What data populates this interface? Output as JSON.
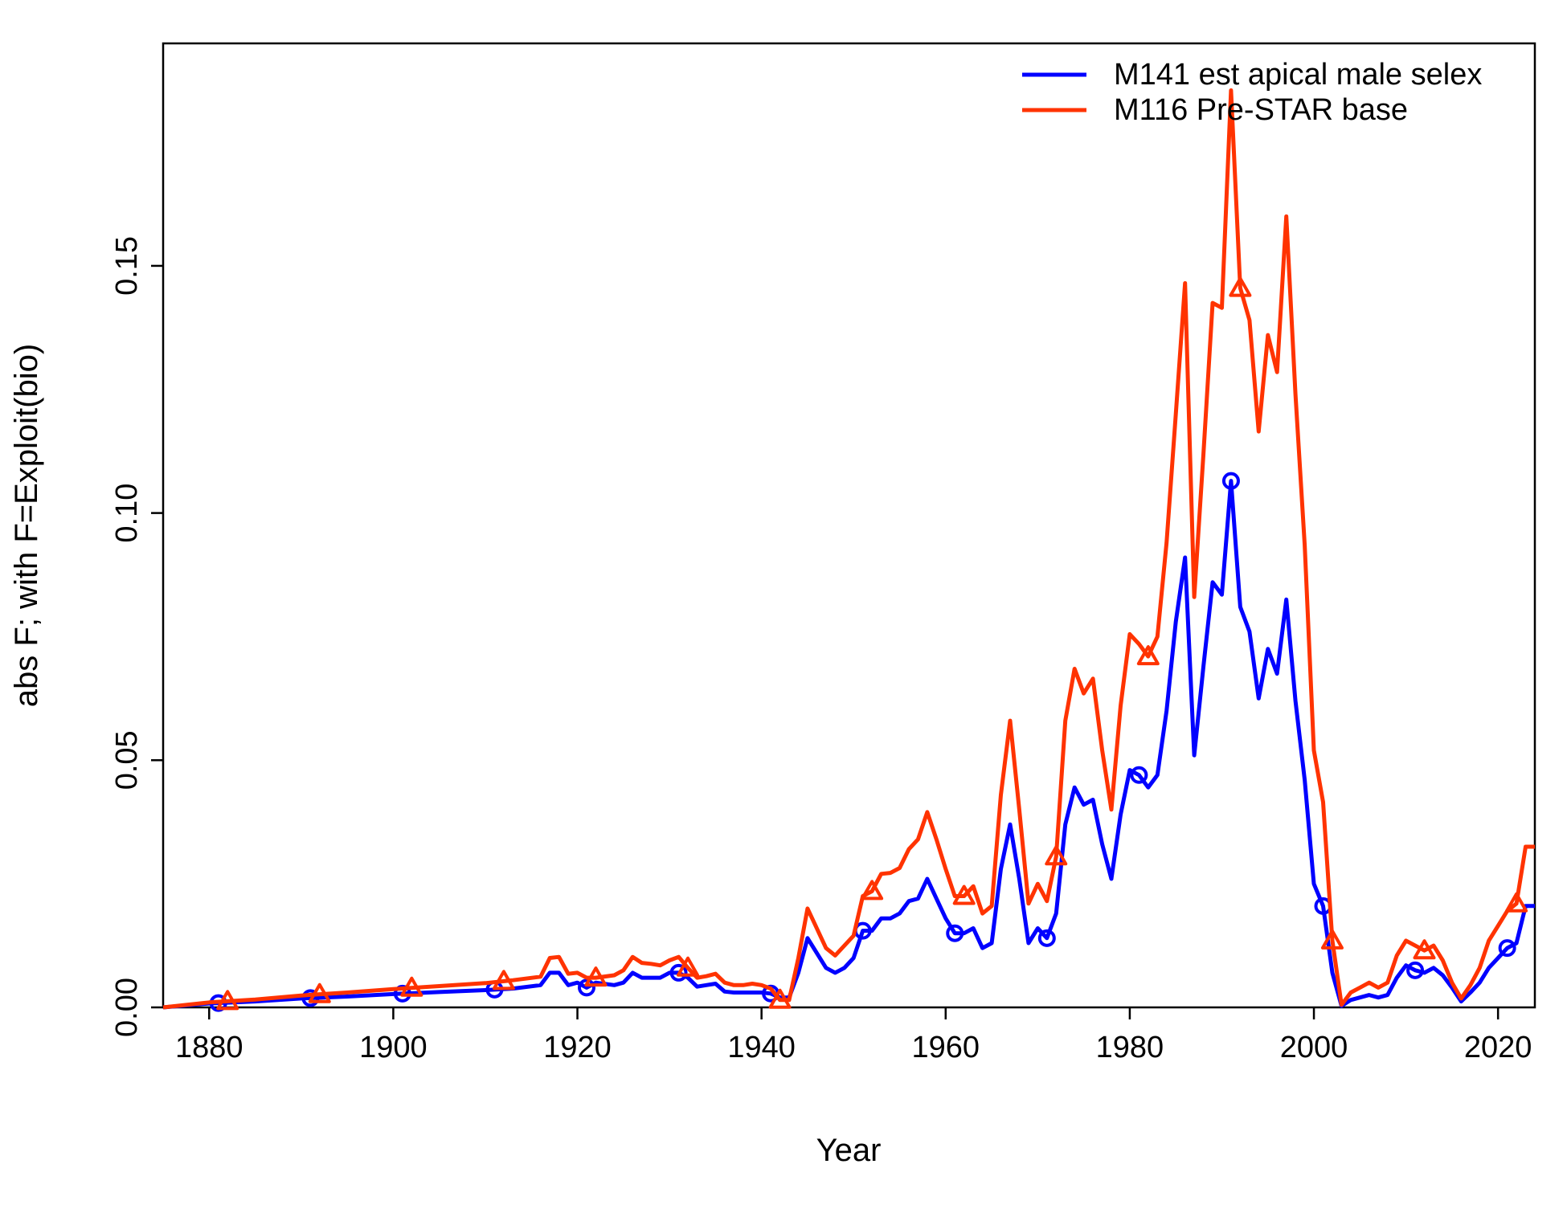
{
  "chart_data": {
    "type": "line",
    "title": "",
    "xlabel": "Year",
    "ylabel": "abs F; with F=Exploit(bio)",
    "xlim": [
      1875,
      2024
    ],
    "ylim": [
      0,
      0.195
    ],
    "x_ticks": [
      "1880",
      "1900",
      "1920",
      "1940",
      "1960",
      "1980",
      "2000",
      "2020"
    ],
    "y_ticks": [
      "0.00",
      "0.05",
      "0.10",
      "0.15"
    ],
    "grid": false,
    "legend_position": "top-right",
    "series": [
      {
        "name": "M141 est apical male selex",
        "color": "#0000ff",
        "marker": "circle",
        "marker_x": [
          1881,
          1891,
          1901,
          1911,
          1921,
          1931,
          1941,
          1951,
          1961,
          1971,
          1981,
          1991,
          2001,
          2011,
          2021
        ],
        "points": [
          [
            1875,
            0.0
          ],
          [
            1880,
            0.0008
          ],
          [
            1885,
            0.0012
          ],
          [
            1890,
            0.0018
          ],
          [
            1895,
            0.0022
          ],
          [
            1900,
            0.0027
          ],
          [
            1905,
            0.0031
          ],
          [
            1910,
            0.0035
          ],
          [
            1913,
            0.0038
          ],
          [
            1916,
            0.0045
          ],
          [
            1917,
            0.007
          ],
          [
            1918,
            0.007
          ],
          [
            1919,
            0.0045
          ],
          [
            1920,
            0.005
          ],
          [
            1921,
            0.004
          ],
          [
            1922,
            0.005
          ],
          [
            1924,
            0.0045
          ],
          [
            1925,
            0.005
          ],
          [
            1926,
            0.007
          ],
          [
            1927,
            0.006
          ],
          [
            1928,
            0.006
          ],
          [
            1929,
            0.006
          ],
          [
            1930,
            0.007
          ],
          [
            1931,
            0.007
          ],
          [
            1932,
            0.006
          ],
          [
            1933,
            0.0042
          ],
          [
            1934,
            0.0045
          ],
          [
            1935,
            0.0048
          ],
          [
            1936,
            0.0032
          ],
          [
            1937,
            0.003
          ],
          [
            1938,
            0.003
          ],
          [
            1939,
            0.003
          ],
          [
            1940,
            0.003
          ],
          [
            1941,
            0.0028
          ],
          [
            1942,
            0.002
          ],
          [
            1943,
            0.002
          ],
          [
            1944,
            0.007
          ],
          [
            1945,
            0.014
          ],
          [
            1946,
            0.011
          ],
          [
            1947,
            0.008
          ],
          [
            1948,
            0.007
          ],
          [
            1949,
            0.008
          ],
          [
            1950,
            0.01
          ],
          [
            1951,
            0.0155
          ],
          [
            1952,
            0.0155
          ],
          [
            1953,
            0.018
          ],
          [
            1954,
            0.018
          ],
          [
            1955,
            0.019
          ],
          [
            1956,
            0.0215
          ],
          [
            1957,
            0.022
          ],
          [
            1958,
            0.026
          ],
          [
            1959,
            0.022
          ],
          [
            1960,
            0.018
          ],
          [
            1961,
            0.015
          ],
          [
            1962,
            0.015
          ],
          [
            1963,
            0.016
          ],
          [
            1964,
            0.012
          ],
          [
            1965,
            0.013
          ],
          [
            1966,
            0.028
          ],
          [
            1967,
            0.037
          ],
          [
            1968,
            0.026
          ],
          [
            1969,
            0.013
          ],
          [
            1970,
            0.016
          ],
          [
            1971,
            0.014
          ],
          [
            1972,
            0.019
          ],
          [
            1973,
            0.037
          ],
          [
            1974,
            0.0445
          ],
          [
            1975,
            0.041
          ],
          [
            1976,
            0.042
          ],
          [
            1977,
            0.033
          ],
          [
            1978,
            0.026
          ],
          [
            1979,
            0.039
          ],
          [
            1980,
            0.048
          ],
          [
            1981,
            0.047
          ],
          [
            1982,
            0.0445
          ],
          [
            1983,
            0.047
          ],
          [
            1984,
            0.06
          ],
          [
            1985,
            0.078
          ],
          [
            1986,
            0.091
          ],
          [
            1987,
            0.051
          ],
          [
            1988,
            0.069
          ],
          [
            1989,
            0.086
          ],
          [
            1990,
            0.0835
          ],
          [
            1991,
            0.1065
          ],
          [
            1992,
            0.081
          ],
          [
            1993,
            0.076
          ],
          [
            1994,
            0.0625
          ],
          [
            1995,
            0.0725
          ],
          [
            1996,
            0.0675
          ],
          [
            1997,
            0.0825
          ],
          [
            1998,
            0.062
          ],
          [
            1999,
            0.046
          ],
          [
            2000,
            0.025
          ],
          [
            2001,
            0.0205
          ],
          [
            2002,
            0.007
          ],
          [
            2003,
            0.0003
          ],
          [
            2004,
            0.0015
          ],
          [
            2005,
            0.002
          ],
          [
            2006,
            0.0025
          ],
          [
            2007,
            0.002
          ],
          [
            2008,
            0.0025
          ],
          [
            2009,
            0.006
          ],
          [
            2010,
            0.0085
          ],
          [
            2011,
            0.0075
          ],
          [
            2012,
            0.007
          ],
          [
            2013,
            0.008
          ],
          [
            2014,
            0.0065
          ],
          [
            2015,
            0.004
          ],
          [
            2016,
            0.0012
          ],
          [
            2017,
            0.003
          ],
          [
            2018,
            0.005
          ],
          [
            2019,
            0.008
          ],
          [
            2020,
            0.01
          ],
          [
            2021,
            0.012
          ],
          [
            2022,
            0.013
          ],
          [
            2023,
            0.0205
          ],
          [
            2024,
            0.0205
          ]
        ]
      },
      {
        "name": "M116 Pre-STAR base",
        "color": "#ff3300",
        "marker": "triangle",
        "marker_x": [
          1882,
          1892,
          1902,
          1912,
          1922,
          1932,
          1942,
          1952,
          1962,
          1972,
          1982,
          1992,
          2002,
          2012,
          2022
        ],
        "points": [
          [
            1875,
            0.0
          ],
          [
            1880,
            0.001
          ],
          [
            1885,
            0.0016
          ],
          [
            1890,
            0.0024
          ],
          [
            1895,
            0.003
          ],
          [
            1900,
            0.0037
          ],
          [
            1905,
            0.0043
          ],
          [
            1910,
            0.0049
          ],
          [
            1913,
            0.0055
          ],
          [
            1916,
            0.0062
          ],
          [
            1917,
            0.01
          ],
          [
            1918,
            0.0102
          ],
          [
            1919,
            0.0068
          ],
          [
            1920,
            0.007
          ],
          [
            1921,
            0.006
          ],
          [
            1922,
            0.006
          ],
          [
            1924,
            0.0065
          ],
          [
            1925,
            0.0075
          ],
          [
            1926,
            0.0102
          ],
          [
            1927,
            0.009
          ],
          [
            1928,
            0.0088
          ],
          [
            1929,
            0.0085
          ],
          [
            1930,
            0.0095
          ],
          [
            1931,
            0.0102
          ],
          [
            1932,
            0.008
          ],
          [
            1933,
            0.006
          ],
          [
            1934,
            0.0063
          ],
          [
            1935,
            0.0068
          ],
          [
            1936,
            0.005
          ],
          [
            1937,
            0.0045
          ],
          [
            1938,
            0.0045
          ],
          [
            1939,
            0.0048
          ],
          [
            1940,
            0.0045
          ],
          [
            1941,
            0.0038
          ],
          [
            1942,
            0.0015
          ],
          [
            1943,
            0.0015
          ],
          [
            1944,
            0.01
          ],
          [
            1945,
            0.02
          ],
          [
            1946,
            0.016
          ],
          [
            1947,
            0.012
          ],
          [
            1948,
            0.0105
          ],
          [
            1949,
            0.0125
          ],
          [
            1950,
            0.0145
          ],
          [
            1951,
            0.0225
          ],
          [
            1952,
            0.0235
          ],
          [
            1953,
            0.027
          ],
          [
            1954,
            0.0272
          ],
          [
            1955,
            0.0282
          ],
          [
            1956,
            0.032
          ],
          [
            1957,
            0.034
          ],
          [
            1958,
            0.0395
          ],
          [
            1959,
            0.034
          ],
          [
            1960,
            0.028
          ],
          [
            1961,
            0.0225
          ],
          [
            1962,
            0.0225
          ],
          [
            1963,
            0.0245
          ],
          [
            1964,
            0.019
          ],
          [
            1965,
            0.0205
          ],
          [
            1966,
            0.043
          ],
          [
            1967,
            0.058
          ],
          [
            1968,
            0.04
          ],
          [
            1969,
            0.021
          ],
          [
            1970,
            0.025
          ],
          [
            1971,
            0.0215
          ],
          [
            1972,
            0.0305
          ],
          [
            1973,
            0.058
          ],
          [
            1974,
            0.0685
          ],
          [
            1975,
            0.0635
          ],
          [
            1976,
            0.0665
          ],
          [
            1977,
            0.052
          ],
          [
            1978,
            0.04
          ],
          [
            1979,
            0.061
          ],
          [
            1980,
            0.0755
          ],
          [
            1981,
            0.0735
          ],
          [
            1982,
            0.071
          ],
          [
            1983,
            0.075
          ],
          [
            1984,
            0.094
          ],
          [
            1985,
            0.12
          ],
          [
            1986,
            0.1465
          ],
          [
            1987,
            0.083
          ],
          [
            1988,
            0.112
          ],
          [
            1989,
            0.1425
          ],
          [
            1990,
            0.1415
          ],
          [
            1991,
            0.1855
          ],
          [
            1992,
            0.1455
          ],
          [
            1993,
            0.139
          ],
          [
            1994,
            0.1165
          ],
          [
            1995,
            0.136
          ],
          [
            1996,
            0.1285
          ],
          [
            1997,
            0.16
          ],
          [
            1998,
            0.124
          ],
          [
            1999,
            0.0935
          ],
          [
            2000,
            0.052
          ],
          [
            2001,
            0.0415
          ],
          [
            2002,
            0.0135
          ],
          [
            2003,
            0.0005
          ],
          [
            2004,
            0.003
          ],
          [
            2005,
            0.004
          ],
          [
            2006,
            0.005
          ],
          [
            2007,
            0.004
          ],
          [
            2008,
            0.005
          ],
          [
            2009,
            0.0105
          ],
          [
            2010,
            0.0135
          ],
          [
            2011,
            0.0125
          ],
          [
            2012,
            0.0115
          ],
          [
            2013,
            0.0125
          ],
          [
            2014,
            0.0095
          ],
          [
            2015,
            0.005
          ],
          [
            2016,
            0.0018
          ],
          [
            2017,
            0.0045
          ],
          [
            2018,
            0.008
          ],
          [
            2019,
            0.0135
          ],
          [
            2020,
            0.0165
          ],
          [
            2021,
            0.0195
          ],
          [
            2022,
            0.021
          ],
          [
            2023,
            0.0325
          ],
          [
            2024,
            0.0325
          ]
        ]
      }
    ]
  }
}
